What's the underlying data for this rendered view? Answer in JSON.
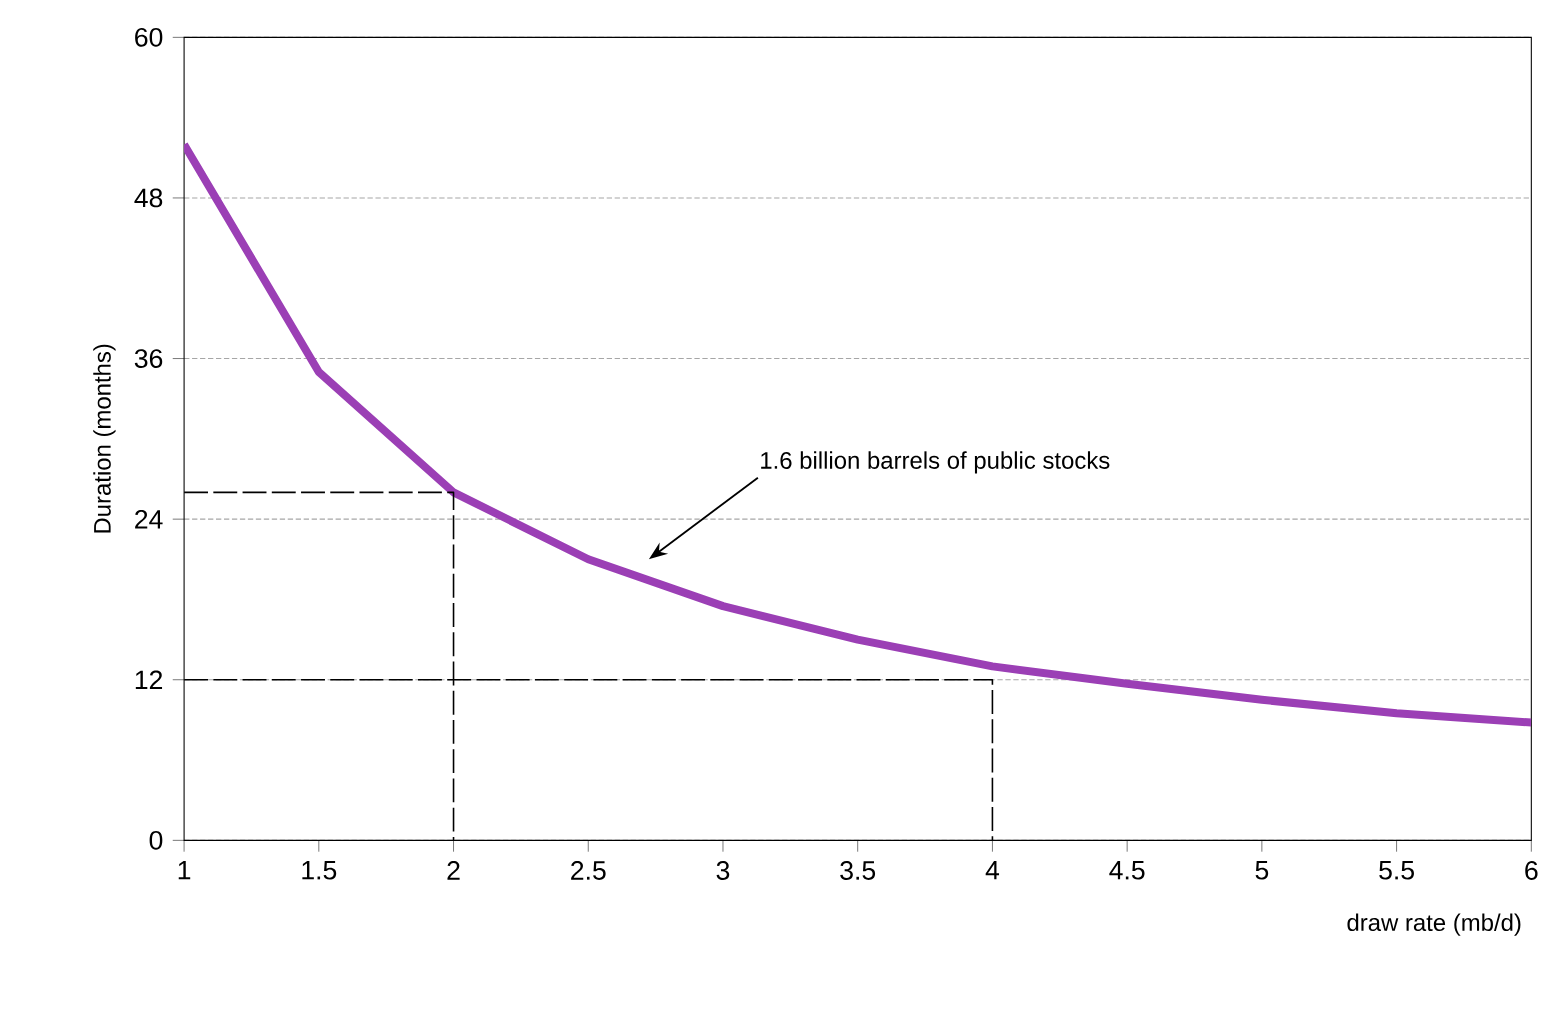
{
  "chart_data": {
    "type": "line",
    "xlabel": "draw rate (mb/d)",
    "ylabel": "Duration (months)",
    "x": [
      1,
      1.5,
      2,
      2.5,
      3,
      3.5,
      4,
      4.5,
      5,
      5.5,
      6
    ],
    "series": [
      {
        "color": "#9b3fb5",
        "values": [
          52,
          35,
          26,
          21,
          17.5,
          15,
          13,
          11.7,
          10.5,
          9.5,
          8.8
        ]
      },
      {
        "color": "#000000",
        "line_style": "dashed",
        "x": [
          1,
          2,
          2
        ],
        "values": [
          26,
          26,
          0
        ]
      },
      {
        "color": "#000000",
        "line_style": "dashed",
        "x": [
          1,
          4,
          4
        ],
        "values": [
          12,
          12,
          0
        ]
      }
    ],
    "annotations": [
      "1.6 billion barrels of public stocks"
    ],
    "xlim": [
      1,
      6
    ],
    "ylim": [
      0,
      60
    ],
    "xticks": [
      1,
      1.5,
      2,
      2.5,
      3,
      3.5,
      4,
      4.5,
      5,
      5.5,
      6
    ],
    "yticks": [
      0,
      12,
      24,
      36,
      48,
      60
    ],
    "grid": "y",
    "marker": "none"
  }
}
